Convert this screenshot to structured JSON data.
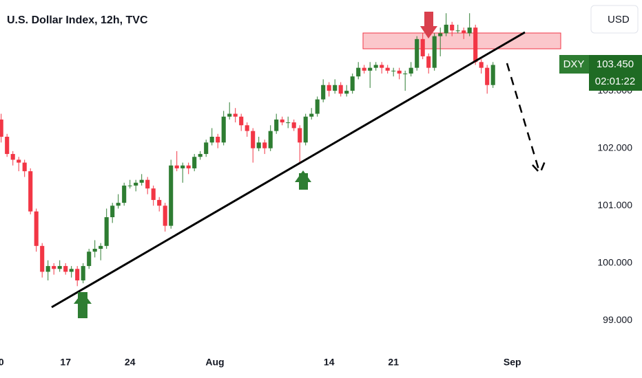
{
  "chart_data": {
    "type": "candlestick",
    "title": "U.S. Dollar Index, 12h, TVC",
    "currency": "USD",
    "symbol": "DXY",
    "countdown": "02:01:22",
    "last_price": {
      "value": 103.45,
      "label": "103.450"
    },
    "up_color": "#2e7d32",
    "down_color": "#f23645",
    "grid": false,
    "open": [
      102.5,
      102.2,
      101.9,
      101.8,
      101.75,
      101.6,
      100.9,
      100.3,
      99.85,
      99.95,
      99.9,
      99.95,
      99.85,
      99.9,
      99.7,
      99.95,
      100.2,
      100.25,
      100.3,
      100.8,
      101.0,
      101.05,
      101.35,
      101.35,
      101.4,
      101.45,
      101.3,
      101.1,
      101.0,
      100.65,
      101.7,
      101.65,
      101.7,
      101.65,
      101.85,
      101.9,
      102.1,
      102.2,
      102.1,
      102.55,
      102.6,
      102.55,
      102.4,
      102.3,
      102.0,
      102.1,
      102.0,
      102.3,
      102.5,
      102.45,
      102.45,
      102.35,
      102.1,
      102.55,
      102.6,
      102.85,
      103.1,
      103.0,
      103.1,
      102.95,
      103.0,
      103.25,
      103.4,
      103.35,
      103.4,
      103.45,
      103.4,
      103.35,
      103.35,
      103.3,
      103.3,
      103.4,
      103.9,
      103.6,
      103.4,
      103.95,
      104.0,
      104.15,
      104.05,
      104.05,
      104.0,
      104.1,
      103.5,
      103.4,
      103.1
    ],
    "high": [
      102.6,
      102.25,
      101.95,
      101.85,
      101.8,
      101.65,
      100.95,
      100.35,
      100.05,
      100.0,
      100.05,
      100.0,
      99.95,
      99.95,
      100.0,
      100.25,
      100.4,
      100.35,
      100.95,
      101.05,
      101.2,
      101.4,
      101.45,
      101.45,
      101.55,
      101.5,
      101.35,
      101.15,
      101.05,
      101.8,
      101.95,
      101.75,
      101.75,
      101.9,
      101.95,
      102.15,
      102.35,
      102.25,
      102.65,
      102.8,
      102.7,
      102.6,
      102.45,
      102.35,
      102.2,
      102.15,
      102.4,
      102.6,
      102.55,
      102.55,
      102.5,
      102.4,
      102.6,
      102.7,
      102.9,
      103.2,
      103.15,
      103.2,
      103.15,
      103.1,
      103.3,
      103.5,
      103.45,
      103.5,
      103.5,
      103.5,
      103.45,
      103.4,
      103.4,
      103.35,
      103.5,
      103.95,
      104.0,
      103.65,
      104.0,
      104.1,
      104.35,
      104.2,
      104.15,
      104.1,
      104.35,
      104.15,
      103.55,
      103.45,
      103.5
    ],
    "low": [
      102.1,
      101.85,
      101.7,
      101.6,
      101.5,
      100.85,
      100.2,
      99.75,
      99.7,
      99.8,
      99.85,
      99.8,
      99.75,
      99.6,
      99.65,
      99.9,
      100.1,
      100.05,
      100.25,
      100.7,
      100.95,
      101.0,
      101.3,
      101.25,
      101.35,
      101.2,
      101.0,
      100.9,
      100.55,
      100.6,
      101.6,
      101.4,
      101.55,
      101.6,
      101.8,
      101.85,
      102.05,
      102.0,
      102.05,
      102.5,
      102.45,
      102.3,
      102.2,
      101.75,
      101.95,
      101.9,
      101.95,
      102.25,
      102.4,
      102.35,
      102.3,
      101.75,
      102.05,
      102.5,
      102.55,
      102.8,
      102.9,
      102.95,
      102.9,
      102.9,
      102.95,
      103.2,
      103.3,
      103.05,
      103.35,
      103.3,
      103.3,
      103.25,
      103.2,
      103.0,
      103.25,
      103.35,
      103.55,
      103.3,
      103.35,
      103.6,
      103.95,
      103.95,
      104.0,
      103.9,
      103.95,
      103.45,
      103.3,
      102.95,
      103.05
    ],
    "close": [
      102.2,
      101.9,
      101.8,
      101.75,
      101.6,
      100.9,
      100.3,
      99.85,
      99.95,
      99.9,
      99.95,
      99.85,
      99.9,
      99.7,
      99.95,
      100.2,
      100.25,
      100.3,
      100.8,
      101.0,
      101.05,
      101.35,
      101.35,
      101.4,
      101.45,
      101.3,
      101.1,
      101.0,
      100.65,
      101.7,
      101.65,
      101.7,
      101.65,
      101.85,
      101.9,
      102.1,
      102.2,
      102.1,
      102.55,
      102.6,
      102.55,
      102.4,
      102.3,
      102.0,
      102.1,
      102.0,
      102.3,
      102.5,
      102.45,
      102.45,
      102.35,
      102.1,
      102.55,
      102.6,
      102.85,
      103.1,
      103.0,
      103.1,
      102.95,
      103.0,
      103.25,
      103.4,
      103.35,
      103.4,
      103.45,
      103.4,
      103.35,
      103.35,
      103.3,
      103.3,
      103.4,
      103.9,
      103.6,
      103.4,
      103.95,
      104.0,
      104.15,
      104.05,
      104.05,
      104.0,
      104.1,
      103.5,
      103.4,
      103.1,
      103.45
    ],
    "xlim": [
      -0.2,
      99.8
    ],
    "xticks": [
      {
        "value": 0,
        "label": "0"
      },
      {
        "value": 11,
        "label": "17"
      },
      {
        "value": 22,
        "label": "24"
      },
      {
        "value": 36.5,
        "label": "Aug"
      },
      {
        "value": 56,
        "label": "14"
      },
      {
        "value": 67,
        "label": "21"
      },
      {
        "value": 87.3,
        "label": "Sep"
      }
    ],
    "ylim": [
      98.42,
      104.58
    ],
    "yticks": [
      {
        "value": 99,
        "label": "99.000"
      },
      {
        "value": 100,
        "label": "100.000"
      },
      {
        "value": 101,
        "label": "101.000"
      },
      {
        "value": 102,
        "label": "102.000"
      },
      {
        "value": 103,
        "label": "103.000"
      }
    ]
  }
}
